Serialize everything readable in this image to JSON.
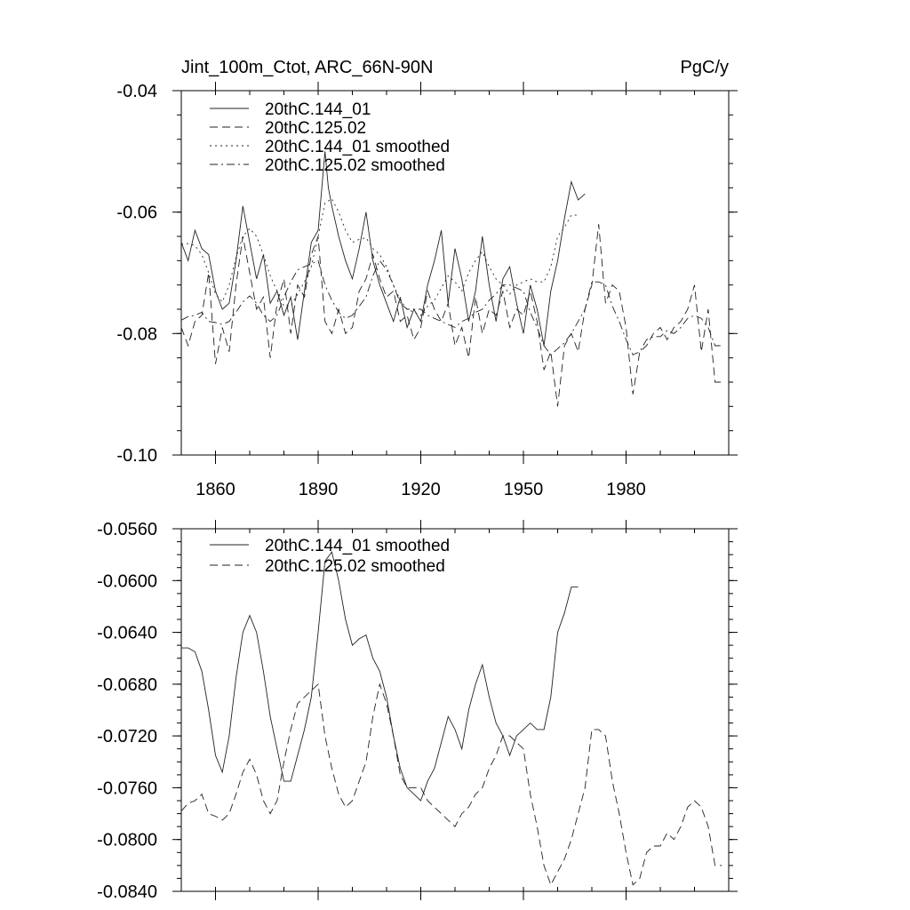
{
  "chart_data": [
    {
      "type": "line",
      "title": "Jint_100m_Ctot, ARC_66N-90N",
      "units": "PgC/y",
      "xlabel": "",
      "ylabel": "",
      "xlim": [
        1850,
        2010
      ],
      "ylim": [
        -0.1,
        -0.04
      ],
      "xticks": [
        1860,
        1890,
        1920,
        1950,
        1980
      ],
      "xtick_labels": [
        "1860",
        "1890",
        "1920",
        "1950",
        "1980"
      ],
      "yticks": [
        -0.1,
        -0.08,
        -0.06,
        -0.04
      ],
      "ytick_labels": [
        "-0.10",
        "-0.08",
        "-0.06",
        "-0.04"
      ],
      "legend_position": "top-left",
      "grid": false,
      "series": [
        {
          "name": "20thC.144_01",
          "style": "solid",
          "x": [
            1850,
            1852,
            1854,
            1856,
            1858,
            1860,
            1862,
            1864,
            1866,
            1868,
            1870,
            1872,
            1874,
            1876,
            1878,
            1880,
            1882,
            1884,
            1886,
            1888,
            1890,
            1892,
            1893,
            1894,
            1896,
            1898,
            1900,
            1902,
            1904,
            1906,
            1908,
            1910,
            1912,
            1914,
            1916,
            1918,
            1920,
            1922,
            1924,
            1926,
            1928,
            1930,
            1932,
            1934,
            1936,
            1938,
            1940,
            1942,
            1944,
            1946,
            1948,
            1950,
            1952,
            1954,
            1956,
            1958,
            1960,
            1962,
            1964,
            1966,
            1968
          ],
          "values": [
            -0.065,
            -0.068,
            -0.063,
            -0.066,
            -0.067,
            -0.073,
            -0.076,
            -0.075,
            -0.068,
            -0.059,
            -0.065,
            -0.071,
            -0.067,
            -0.075,
            -0.073,
            -0.077,
            -0.074,
            -0.081,
            -0.073,
            -0.065,
            -0.063,
            -0.05,
            -0.056,
            -0.059,
            -0.064,
            -0.068,
            -0.071,
            -0.066,
            -0.06,
            -0.068,
            -0.072,
            -0.075,
            -0.078,
            -0.074,
            -0.079,
            -0.076,
            -0.078,
            -0.072,
            -0.068,
            -0.063,
            -0.075,
            -0.066,
            -0.071,
            -0.078,
            -0.073,
            -0.064,
            -0.072,
            -0.078,
            -0.071,
            -0.069,
            -0.075,
            -0.08,
            -0.072,
            -0.076,
            -0.082,
            -0.073,
            -0.068,
            -0.061,
            -0.055,
            -0.058,
            -0.057
          ]
        },
        {
          "name": "20thC.125.02",
          "style": "dashed",
          "x": [
            1850,
            1852,
            1854,
            1856,
            1858,
            1860,
            1862,
            1864,
            1866,
            1868,
            1870,
            1872,
            1874,
            1876,
            1878,
            1880,
            1882,
            1884,
            1886,
            1888,
            1890,
            1892,
            1894,
            1896,
            1898,
            1900,
            1902,
            1904,
            1906,
            1908,
            1910,
            1912,
            1914,
            1916,
            1918,
            1920,
            1922,
            1924,
            1926,
            1928,
            1930,
            1932,
            1934,
            1936,
            1938,
            1940,
            1942,
            1944,
            1946,
            1948,
            1950,
            1952,
            1954,
            1956,
            1958,
            1960,
            1962,
            1964,
            1966,
            1968,
            1970,
            1972,
            1974,
            1976,
            1978,
            1980,
            1982,
            1984,
            1986,
            1988,
            1990,
            1992,
            1994,
            1996,
            1998,
            2000,
            2002,
            2004,
            2006,
            2008
          ],
          "values": [
            -0.079,
            -0.082,
            -0.078,
            -0.077,
            -0.07,
            -0.085,
            -0.079,
            -0.083,
            -0.072,
            -0.064,
            -0.07,
            -0.076,
            -0.074,
            -0.084,
            -0.075,
            -0.071,
            -0.08,
            -0.072,
            -0.074,
            -0.067,
            -0.064,
            -0.078,
            -0.08,
            -0.076,
            -0.08,
            -0.079,
            -0.073,
            -0.071,
            -0.067,
            -0.071,
            -0.074,
            -0.073,
            -0.078,
            -0.077,
            -0.081,
            -0.079,
            -0.073,
            -0.076,
            -0.078,
            -0.075,
            -0.082,
            -0.079,
            -0.084,
            -0.074,
            -0.08,
            -0.076,
            -0.077,
            -0.073,
            -0.079,
            -0.076,
            -0.077,
            -0.073,
            -0.078,
            -0.086,
            -0.083,
            -0.092,
            -0.082,
            -0.08,
            -0.083,
            -0.076,
            -0.072,
            -0.062,
            -0.075,
            -0.072,
            -0.073,
            -0.079,
            -0.09,
            -0.083,
            -0.082,
            -0.08,
            -0.079,
            -0.081,
            -0.079,
            -0.078,
            -0.076,
            -0.072,
            -0.083,
            -0.076,
            -0.088,
            -0.088
          ]
        },
        {
          "name": "20thC.144_01 smoothed",
          "style": "dotted",
          "x": [
            1850,
            1852,
            1854,
            1856,
            1858,
            1860,
            1862,
            1864,
            1866,
            1868,
            1870,
            1872,
            1874,
            1876,
            1878,
            1880,
            1882,
            1884,
            1886,
            1888,
            1890,
            1892,
            1894,
            1896,
            1898,
            1900,
            1902,
            1904,
            1906,
            1908,
            1910,
            1912,
            1914,
            1916,
            1918,
            1920,
            1922,
            1924,
            1926,
            1928,
            1930,
            1932,
            1934,
            1936,
            1938,
            1940,
            1942,
            1944,
            1946,
            1948,
            1950,
            1952,
            1954,
            1956,
            1958,
            1960,
            1962,
            1964,
            1966
          ],
          "values": [
            -0.0652,
            -0.0652,
            -0.0655,
            -0.067,
            -0.07,
            -0.0735,
            -0.0748,
            -0.072,
            -0.0675,
            -0.064,
            -0.0627,
            -0.064,
            -0.067,
            -0.0705,
            -0.073,
            -0.0755,
            -0.0755,
            -0.0735,
            -0.0715,
            -0.069,
            -0.064,
            -0.0585,
            -0.0578,
            -0.06,
            -0.063,
            -0.065,
            -0.0645,
            -0.0642,
            -0.066,
            -0.067,
            -0.069,
            -0.072,
            -0.0745,
            -0.076,
            -0.0765,
            -0.077,
            -0.0755,
            -0.0745,
            -0.0725,
            -0.0705,
            -0.0715,
            -0.073,
            -0.07,
            -0.068,
            -0.0665,
            -0.069,
            -0.071,
            -0.072,
            -0.0735,
            -0.072,
            -0.0715,
            -0.071,
            -0.0715,
            -0.0715,
            -0.069,
            -0.064,
            -0.0625,
            -0.0605,
            -0.0605
          ]
        },
        {
          "name": "20thC.125.02 smoothed",
          "style": "dashdot",
          "x": [
            1850,
            1852,
            1854,
            1856,
            1858,
            1860,
            1862,
            1864,
            1866,
            1868,
            1870,
            1872,
            1874,
            1876,
            1878,
            1880,
            1882,
            1884,
            1886,
            1888,
            1890,
            1892,
            1894,
            1896,
            1898,
            1900,
            1902,
            1904,
            1906,
            1908,
            1910,
            1912,
            1914,
            1916,
            1918,
            1920,
            1922,
            1924,
            1926,
            1928,
            1930,
            1932,
            1934,
            1936,
            1938,
            1940,
            1942,
            1944,
            1946,
            1948,
            1950,
            1952,
            1954,
            1956,
            1958,
            1960,
            1962,
            1964,
            1966,
            1968,
            1970,
            1972,
            1974,
            1976,
            1978,
            1980,
            1982,
            1984,
            1986,
            1988,
            1990,
            1992,
            1994,
            1996,
            1998,
            2000,
            2002,
            2004,
            2006,
            2008
          ],
          "values": [
            -0.0778,
            -0.0772,
            -0.077,
            -0.0765,
            -0.078,
            -0.0782,
            -0.0785,
            -0.078,
            -0.0765,
            -0.0748,
            -0.0738,
            -0.075,
            -0.077,
            -0.078,
            -0.077,
            -0.074,
            -0.0715,
            -0.0695,
            -0.069,
            -0.0685,
            -0.068,
            -0.072,
            -0.0745,
            -0.0765,
            -0.0775,
            -0.077,
            -0.0755,
            -0.074,
            -0.0705,
            -0.068,
            -0.0695,
            -0.072,
            -0.075,
            -0.076,
            -0.076,
            -0.076,
            -0.077,
            -0.0775,
            -0.078,
            -0.0785,
            -0.079,
            -0.078,
            -0.0775,
            -0.0765,
            -0.076,
            -0.0745,
            -0.0735,
            -0.072,
            -0.072,
            -0.0725,
            -0.073,
            -0.0765,
            -0.079,
            -0.082,
            -0.0835,
            -0.0825,
            -0.0815,
            -0.08,
            -0.078,
            -0.076,
            -0.0715,
            -0.0715,
            -0.072,
            -0.0755,
            -0.078,
            -0.081,
            -0.0835,
            -0.083,
            -0.081,
            -0.0805,
            -0.0805,
            -0.0795,
            -0.08,
            -0.079,
            -0.0775,
            -0.077,
            -0.0775,
            -0.079,
            -0.082,
            -0.082
          ]
        }
      ]
    },
    {
      "type": "line",
      "title": "",
      "xlabel": "",
      "ylabel": "",
      "xlim": [
        1850,
        2010
      ],
      "ylim": [
        -0.084,
        -0.056
      ],
      "xticks": [
        1860,
        1890,
        1920,
        1950,
        1980
      ],
      "yticks": [
        -0.084,
        -0.08,
        -0.076,
        -0.072,
        -0.068,
        -0.064,
        -0.06,
        -0.056
      ],
      "ytick_labels": [
        "-0.0840",
        "-0.0800",
        "-0.0760",
        "-0.0720",
        "-0.0680",
        "-0.0640",
        "-0.0600",
        "-0.0560"
      ],
      "legend_position": "top-left",
      "grid": false,
      "series": [
        {
          "name": "20thC.144_01 smoothed",
          "style": "solid",
          "x": [
            1850,
            1852,
            1854,
            1856,
            1858,
            1860,
            1862,
            1864,
            1866,
            1868,
            1870,
            1872,
            1874,
            1876,
            1878,
            1880,
            1882,
            1884,
            1886,
            1888,
            1890,
            1892,
            1894,
            1896,
            1898,
            1900,
            1902,
            1904,
            1906,
            1908,
            1910,
            1912,
            1914,
            1916,
            1918,
            1920,
            1922,
            1924,
            1926,
            1928,
            1930,
            1932,
            1934,
            1936,
            1938,
            1940,
            1942,
            1944,
            1946,
            1948,
            1950,
            1952,
            1954,
            1956,
            1958,
            1960,
            1962,
            1964,
            1966
          ],
          "values": [
            -0.0652,
            -0.0652,
            -0.0655,
            -0.067,
            -0.07,
            -0.0735,
            -0.0748,
            -0.072,
            -0.0675,
            -0.064,
            -0.0627,
            -0.064,
            -0.067,
            -0.0705,
            -0.073,
            -0.0755,
            -0.0755,
            -0.0735,
            -0.0715,
            -0.069,
            -0.064,
            -0.0585,
            -0.0578,
            -0.06,
            -0.063,
            -0.065,
            -0.0645,
            -0.0642,
            -0.066,
            -0.067,
            -0.069,
            -0.072,
            -0.0745,
            -0.076,
            -0.0765,
            -0.077,
            -0.0755,
            -0.0745,
            -0.0725,
            -0.0705,
            -0.0715,
            -0.073,
            -0.07,
            -0.068,
            -0.0665,
            -0.069,
            -0.071,
            -0.072,
            -0.0735,
            -0.072,
            -0.0715,
            -0.071,
            -0.0715,
            -0.0715,
            -0.069,
            -0.064,
            -0.0625,
            -0.0605,
            -0.0605
          ]
        },
        {
          "name": "20thC.125.02 smoothed",
          "style": "dashed",
          "x": [
            1850,
            1852,
            1854,
            1856,
            1858,
            1860,
            1862,
            1864,
            1866,
            1868,
            1870,
            1872,
            1874,
            1876,
            1878,
            1880,
            1882,
            1884,
            1886,
            1888,
            1890,
            1892,
            1894,
            1896,
            1898,
            1900,
            1902,
            1904,
            1906,
            1908,
            1910,
            1912,
            1914,
            1916,
            1918,
            1920,
            1922,
            1924,
            1926,
            1928,
            1930,
            1932,
            1934,
            1936,
            1938,
            1940,
            1942,
            1944,
            1946,
            1948,
            1950,
            1952,
            1954,
            1956,
            1958,
            1960,
            1962,
            1964,
            1966,
            1968,
            1970,
            1972,
            1974,
            1976,
            1978,
            1980,
            1982,
            1984,
            1986,
            1988,
            1990,
            1992,
            1994,
            1996,
            1998,
            2000,
            2002,
            2004,
            2006,
            2008
          ],
          "values": [
            -0.0778,
            -0.0772,
            -0.077,
            -0.0765,
            -0.078,
            -0.0782,
            -0.0785,
            -0.078,
            -0.0765,
            -0.0748,
            -0.0738,
            -0.075,
            -0.077,
            -0.078,
            -0.077,
            -0.074,
            -0.0715,
            -0.0695,
            -0.069,
            -0.0685,
            -0.068,
            -0.072,
            -0.0745,
            -0.0765,
            -0.0775,
            -0.077,
            -0.0755,
            -0.074,
            -0.0705,
            -0.068,
            -0.0695,
            -0.072,
            -0.075,
            -0.076,
            -0.076,
            -0.076,
            -0.077,
            -0.0775,
            -0.078,
            -0.0785,
            -0.079,
            -0.078,
            -0.0775,
            -0.0765,
            -0.076,
            -0.0745,
            -0.0735,
            -0.072,
            -0.072,
            -0.0725,
            -0.073,
            -0.0765,
            -0.079,
            -0.082,
            -0.0835,
            -0.0825,
            -0.0815,
            -0.08,
            -0.078,
            -0.076,
            -0.0715,
            -0.0715,
            -0.072,
            -0.0755,
            -0.078,
            -0.081,
            -0.0835,
            -0.083,
            -0.081,
            -0.0805,
            -0.0805,
            -0.0795,
            -0.08,
            -0.079,
            -0.0775,
            -0.077,
            -0.0775,
            -0.079,
            -0.082,
            -0.082
          ]
        }
      ]
    }
  ]
}
